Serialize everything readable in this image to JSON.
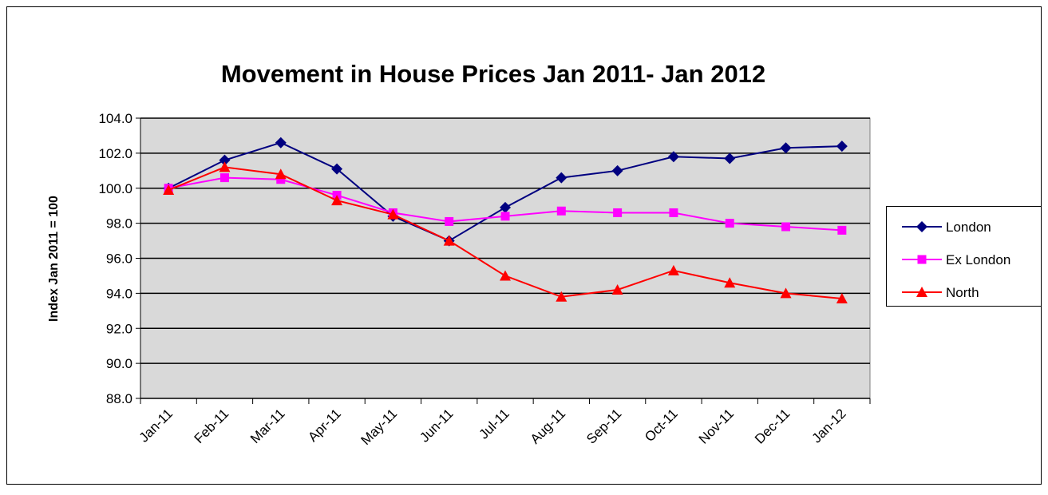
{
  "chart_data": {
    "type": "line",
    "title": "Movement in House Prices Jan 2011- Jan 2012",
    "y_label": "Index Jan 2011 = 100",
    "categories": [
      "Jan-11",
      "Feb-11",
      "Mar-11",
      "Apr-11",
      "May-11",
      "Jun-11",
      "Jul-11",
      "Aug-11",
      "Sep-11",
      "Oct-11",
      "Nov-11",
      "Dec-11",
      "Jan-12"
    ],
    "series": [
      {
        "name": "London",
        "color": "#000080",
        "marker": "diamond",
        "values": [
          100.0,
          101.6,
          102.6,
          101.1,
          98.4,
          97.0,
          98.9,
          100.6,
          101.0,
          101.8,
          101.7,
          102.3,
          102.4
        ]
      },
      {
        "name": "Ex London",
        "color": "#ff00ff",
        "marker": "square",
        "values": [
          100.0,
          100.6,
          100.5,
          99.6,
          98.6,
          98.1,
          98.4,
          98.7,
          98.6,
          98.6,
          98.0,
          97.8,
          97.6
        ]
      },
      {
        "name": "North",
        "color": "#ff0000",
        "marker": "triangle",
        "values": [
          99.9,
          101.2,
          100.8,
          99.3,
          98.5,
          97.0,
          95.0,
          93.8,
          94.2,
          95.3,
          94.6,
          94.0,
          93.7
        ]
      }
    ],
    "ylim": [
      88,
      104
    ],
    "yticks": [
      {
        "value": 88,
        "label": "88.0"
      },
      {
        "value": 90,
        "label": "90.0"
      },
      {
        "value": 92,
        "label": "92.0"
      },
      {
        "value": 94,
        "label": "94.0"
      },
      {
        "value": 96,
        "label": "96.0"
      },
      {
        "value": 98,
        "label": "98.0"
      },
      {
        "value": 100,
        "label": "100.0"
      },
      {
        "value": 102,
        "label": "102.0"
      },
      {
        "value": 104,
        "label": "104.0"
      }
    ],
    "grid": true,
    "legend": "right"
  }
}
